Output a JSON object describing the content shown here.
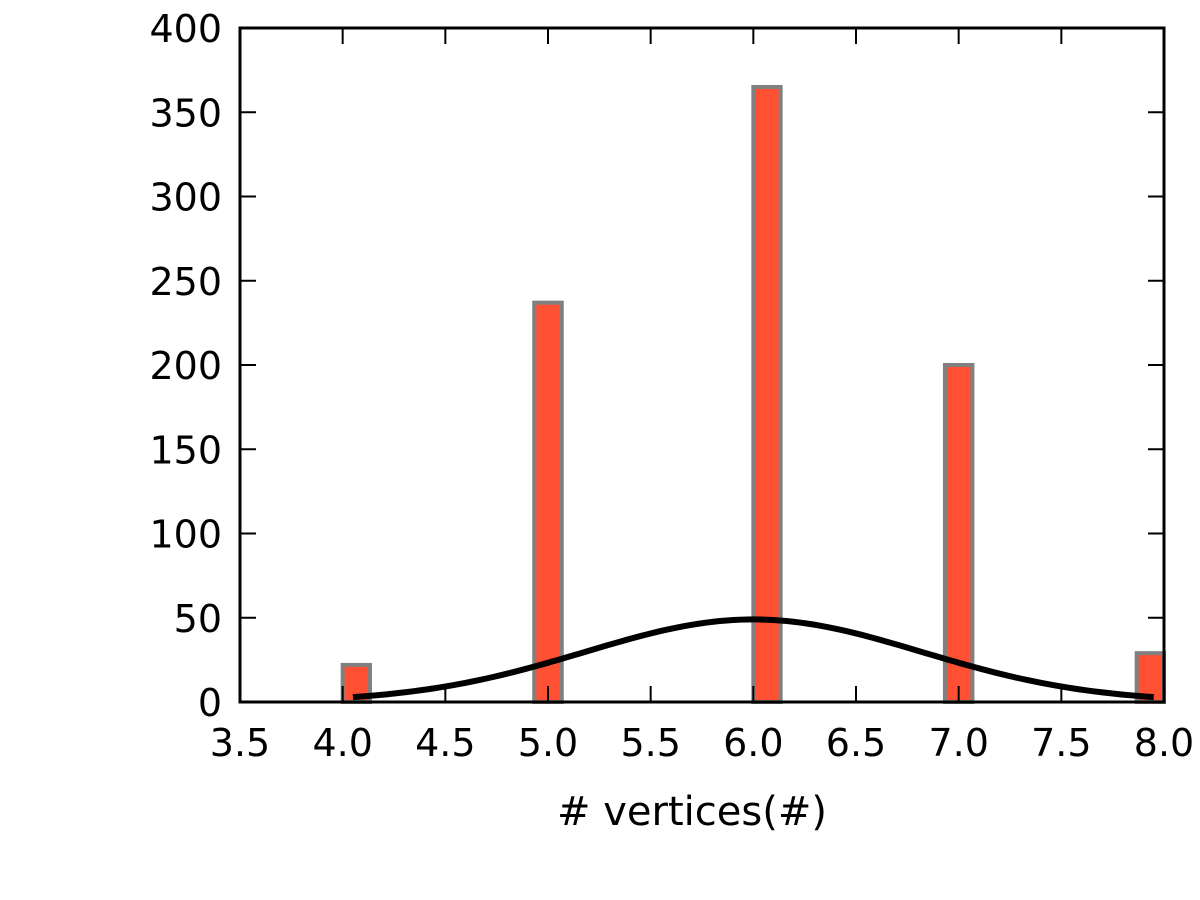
{
  "chart_data": {
    "type": "bar",
    "title": "",
    "xlabel": "# vertices(#)",
    "ylabel": "",
    "xlim": [
      3.5,
      8.0
    ],
    "ylim": [
      0,
      400
    ],
    "xticks": [
      3.5,
      4.0,
      4.5,
      5.0,
      5.5,
      6.0,
      6.5,
      7.0,
      7.5,
      8.0
    ],
    "xtick_labels": [
      "3.5",
      "4.0",
      "4.5",
      "5.0",
      "5.5",
      "6.0",
      "6.5",
      "7.0",
      "7.5",
      "8.0"
    ],
    "yticks": [
      0,
      50,
      100,
      150,
      200,
      250,
      300,
      350,
      400
    ],
    "ytick_labels": [
      "0",
      "50",
      "100",
      "150",
      "200",
      "250",
      "300",
      "350",
      "400"
    ],
    "grid": false,
    "series": [
      {
        "type": "bar",
        "bar_color": "#ff5033",
        "edge_color": "#808080",
        "bins": [
          {
            "x0": 4.0,
            "x1": 4.133,
            "value": 22
          },
          {
            "x0": 4.933,
            "x1": 5.067,
            "value": 237
          },
          {
            "x0": 6.0,
            "x1": 6.133,
            "value": 365
          },
          {
            "x0": 6.933,
            "x1": 7.067,
            "value": 200
          },
          {
            "x0": 7.867,
            "x1": 8.0,
            "value": 29
          }
        ]
      },
      {
        "type": "line",
        "color": "#000000",
        "curve": "gaussian",
        "mean": 6.0,
        "std": 0.82,
        "peak": 49,
        "x_range": [
          4.05,
          7.95
        ]
      }
    ]
  }
}
